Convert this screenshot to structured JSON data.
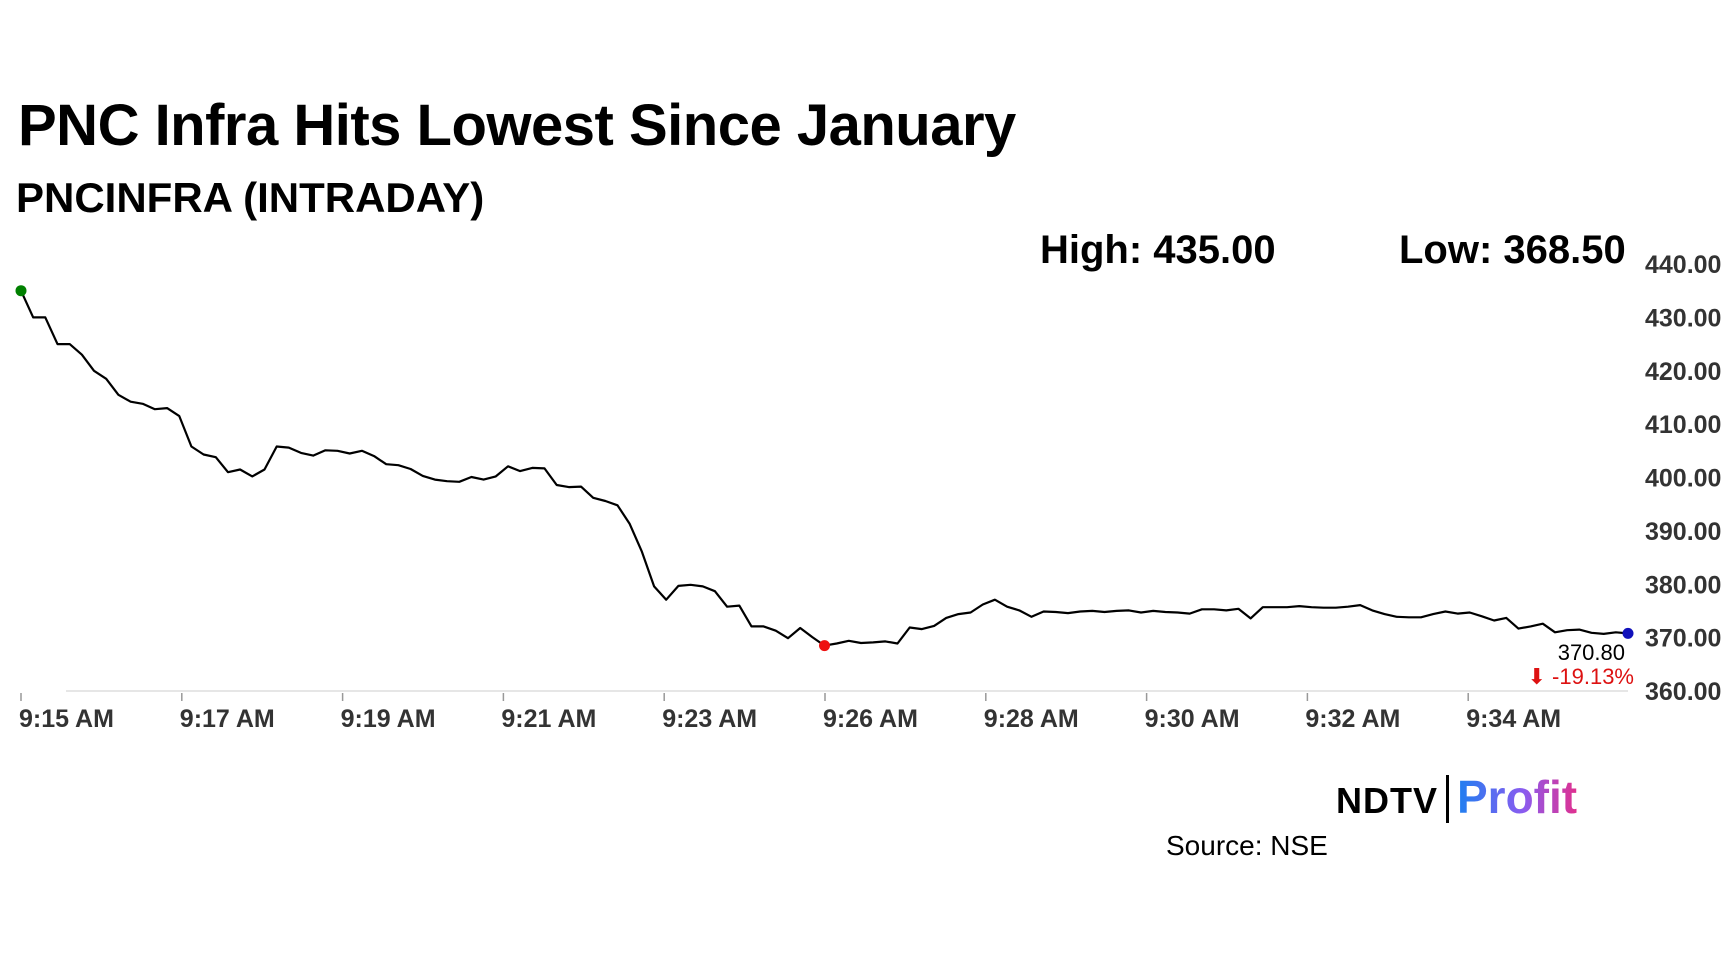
{
  "chart_data": {
    "type": "line",
    "title": "PNC Infra Hits Lowest Since January",
    "subtitle": "PNCINFRA (INTRADAY)",
    "high_label": "High: 435.00",
    "low_label": "Low: 368.50",
    "last_value_label": "370.80",
    "change_label": "⬇ -19.13%",
    "source": "Source: NSE",
    "brand": {
      "ndtv": "NDTV",
      "profit": "Profit"
    },
    "colors": {
      "line": "#000000",
      "start": "#008000",
      "low": "#ee1111",
      "end": "#1111bb",
      "change": "#dd1111",
      "grid": "#dddddd",
      "profit": "#1e7ff0"
    },
    "x_ticks": [
      "9:15 AM",
      "9:17 AM",
      "9:19 AM",
      "9:21 AM",
      "9:23 AM",
      "9:26 AM",
      "9:28 AM",
      "9:30 AM",
      "9:32 AM",
      "9:34 AM"
    ],
    "y_ticks": [
      "440.00",
      "430.00",
      "420.00",
      "410.00",
      "400.00",
      "390.00",
      "380.00",
      "370.00",
      "360.00"
    ],
    "ylim": [
      360,
      440
    ],
    "grid": false,
    "series": [
      {
        "values": [
          435,
          430,
          430,
          425,
          425,
          423,
          420,
          418.5,
          415.5,
          414.2,
          413.8,
          412.8,
          413,
          411.5,
          405.8,
          404.3,
          403.8,
          401,
          401.5,
          400.2,
          401.5,
          405.8,
          405.6,
          404.6,
          404.1,
          405.1,
          405,
          404.5,
          405,
          404,
          402.5,
          402.3,
          401.6,
          400.3,
          399.6,
          399.3,
          399.2,
          400.1,
          399.6,
          400.2,
          402.1,
          401.2,
          401.8,
          401.7,
          398.6,
          398.2,
          398.3,
          396.2,
          395.6,
          394.8,
          391.3,
          386.1,
          379.6,
          377.1,
          379.7,
          379.9,
          379.6,
          378.7,
          375.8,
          376,
          372.1,
          372.1,
          371.3,
          369.9,
          371.8,
          370.1,
          368.5,
          368.9,
          369.4,
          369,
          369.1,
          369.3,
          368.9,
          371.9,
          371.6,
          372.2,
          373.7,
          374.4,
          374.7,
          376.2,
          377.1,
          375.8,
          375.1,
          373.9,
          374.9,
          374.8,
          374.6,
          374.9,
          375,
          374.8,
          375,
          375.1,
          374.7,
          375,
          374.8,
          374.7,
          374.5,
          375.3,
          375.3,
          375.1,
          375.4,
          373.6,
          375.7,
          375.7,
          375.7,
          375.9,
          375.7,
          375.6,
          375.6,
          375.8,
          376.1,
          375.1,
          374.4,
          373.9,
          373.8,
          373.8,
          374.4,
          374.9,
          374.5,
          374.7,
          374,
          373.2,
          373.7,
          371.7,
          372.1,
          372.6,
          371,
          371.4,
          371.5,
          370.9,
          370.7,
          371,
          370.8
        ]
      }
    ]
  }
}
